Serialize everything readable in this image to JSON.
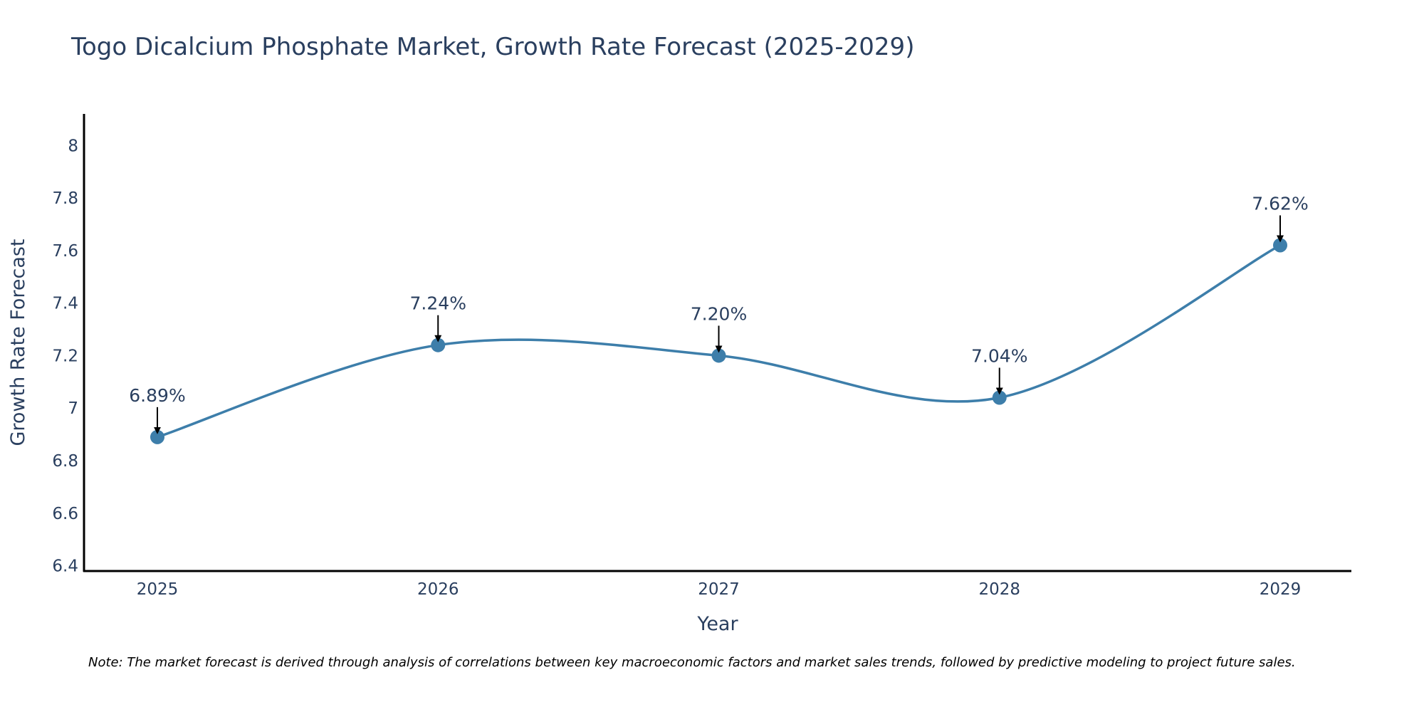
{
  "chart_data": {
    "type": "line",
    "title": "Togo Dicalcium Phosphate Market, Growth Rate Forecast (2025-2029)",
    "xlabel": "Year",
    "ylabel": "Growth Rate Forecast",
    "categories": [
      "2025",
      "2026",
      "2027",
      "2028",
      "2029"
    ],
    "values": [
      6.89,
      7.24,
      7.2,
      7.04,
      7.62
    ],
    "data_labels": [
      "6.89%",
      "7.24%",
      "7.20%",
      "7.04%",
      "7.62%"
    ],
    "ylim": [
      6.38,
      8.12
    ],
    "yticks": [
      6.4,
      6.6,
      6.8,
      7,
      7.2,
      7.4,
      7.6,
      7.8,
      8
    ],
    "ytick_labels": [
      "6.4",
      "6.6",
      "6.8",
      "7",
      "7.2",
      "7.4",
      "7.6",
      "7.8",
      "8"
    ],
    "grid": false,
    "line_color": "#3d7eaa",
    "marker_color": "#3d7eaa",
    "note": "Note: The market forecast is derived through analysis of correlations between key macroeconomic factors and market sales trends, followed by predictive modeling to project future sales."
  }
}
